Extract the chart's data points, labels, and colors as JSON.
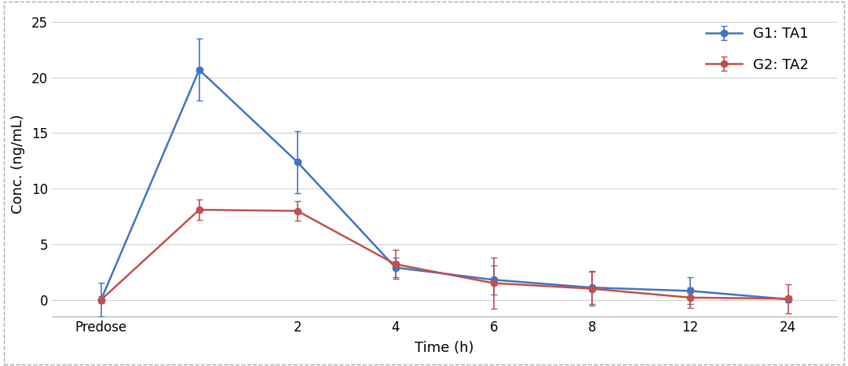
{
  "x_indices": [
    0,
    1,
    2,
    3,
    4,
    5,
    6,
    7
  ],
  "x_tick_positions": [
    0,
    2,
    3,
    4,
    5,
    6,
    7
  ],
  "x_tick_labels": [
    "Predose",
    "2",
    "4",
    "6",
    "8",
    "12",
    "24"
  ],
  "g1_values": [
    0.0,
    20.7,
    12.4,
    2.9,
    1.8,
    1.1,
    0.8,
    0.05
  ],
  "g1_errors": [
    1.5,
    2.8,
    2.8,
    0.9,
    1.3,
    1.5,
    1.2,
    0.3
  ],
  "g2_values": [
    0.0,
    8.1,
    8.0,
    3.2,
    1.5,
    1.0,
    0.2,
    0.1
  ],
  "g2_errors": [
    0.3,
    0.9,
    0.9,
    1.3,
    2.3,
    1.5,
    0.9,
    1.3
  ],
  "g1_color": "#4472C4",
  "g2_color": "#C0504D",
  "g1_label": "G1: TA1",
  "g2_label": "G2: TA2",
  "xlabel": "Time (h)",
  "ylabel": "Conc. (ng/mL)",
  "ylim": [
    -1.5,
    26
  ],
  "yticks": [
    0,
    5,
    10,
    15,
    20,
    25
  ],
  "background_color": "#ffffff",
  "grid_color": "#d0d0d0",
  "marker_size": 6,
  "linewidth": 1.8,
  "capsize": 3,
  "elinewidth": 1.2
}
